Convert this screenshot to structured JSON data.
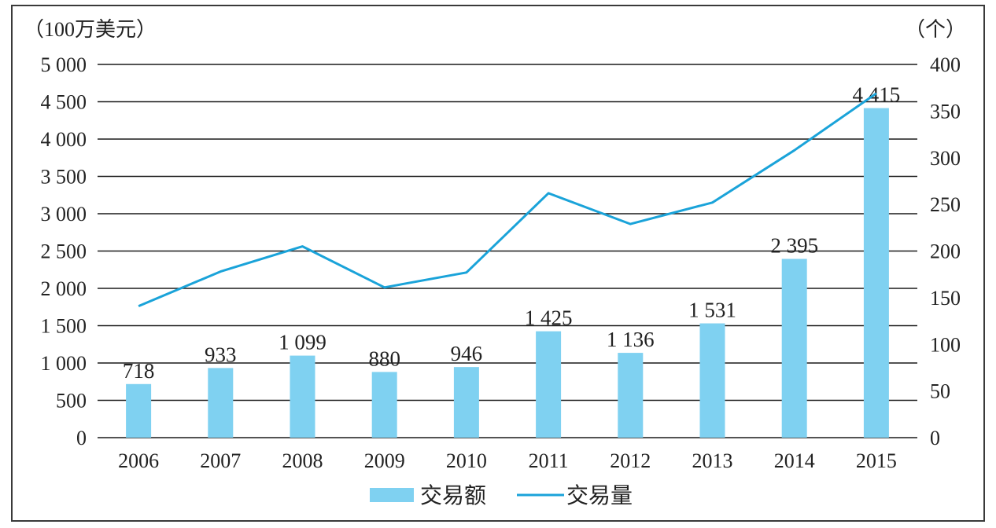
{
  "chart_data": {
    "type": "bar",
    "categories": [
      "2006",
      "2007",
      "2008",
      "2009",
      "2010",
      "2011",
      "2012",
      "2013",
      "2014",
      "2015"
    ],
    "series": [
      {
        "name": "交易额",
        "type": "bar",
        "axis": "left",
        "values": [
          718,
          933,
          1099,
          880,
          946,
          1425,
          1136,
          1531,
          2395,
          4415
        ],
        "data_labels": [
          "718",
          "933",
          "1 099",
          "880",
          "946",
          "1 425",
          "1 136",
          "1 531",
          "2 395",
          "4 415"
        ],
        "color": "#7fd1f1"
      },
      {
        "name": "交易量",
        "type": "line",
        "axis": "right",
        "values": [
          141,
          178,
          205,
          161,
          177,
          262,
          229,
          252,
          308,
          369
        ],
        "color": "#1aa3d9"
      }
    ],
    "y_left": {
      "unit_label": "（100万美元）",
      "ylim": [
        0,
        5000
      ],
      "ticks": [
        0,
        500,
        1000,
        1500,
        2000,
        2500,
        3000,
        3500,
        4000,
        4500,
        5000
      ],
      "tick_labels": [
        "0",
        "500",
        "1 000",
        "1 500",
        "2 000",
        "2 500",
        "3 000",
        "3 500",
        "4 000",
        "4 500",
        "5 000"
      ]
    },
    "y_right": {
      "unit_label": "（个）",
      "ylim": [
        0,
        400
      ],
      "ticks": [
        0,
        50,
        100,
        150,
        200,
        250,
        300,
        350,
        400
      ],
      "tick_labels": [
        "0",
        "50",
        "100",
        "150",
        "200",
        "250",
        "300",
        "350",
        "400"
      ]
    },
    "grid": true,
    "legend": {
      "position": "bottom",
      "items": [
        {
          "label": "交易额",
          "kind": "bar",
          "color": "#7fd1f1"
        },
        {
          "label": "交易量",
          "kind": "line",
          "color": "#1aa3d9"
        }
      ]
    }
  }
}
